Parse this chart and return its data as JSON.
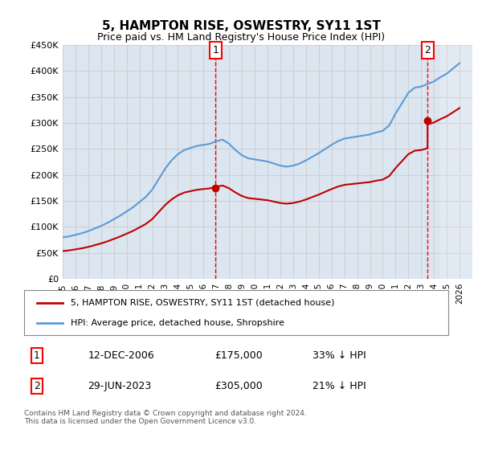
{
  "title": "5, HAMPTON RISE, OSWESTRY, SY11 1ST",
  "subtitle": "Price paid vs. HM Land Registry's House Price Index (HPI)",
  "ylim": [
    0,
    450000
  ],
  "yticks": [
    0,
    50000,
    100000,
    150000,
    200000,
    250000,
    300000,
    350000,
    400000,
    450000
  ],
  "ytick_labels": [
    "£0",
    "£50K",
    "£100K",
    "£150K",
    "£200K",
    "£250K",
    "£300K",
    "£350K",
    "£400K",
    "£450K"
  ],
  "xlim_start": 1995.0,
  "xlim_end": 2027.0,
  "sale1_date": 2006.95,
  "sale1_price": 175000,
  "sale1_label": "1",
  "sale1_text": "12-DEC-2006    £175,000    33% ↓ HPI",
  "sale2_date": 2023.5,
  "sale2_price": 305000,
  "sale2_label": "2",
  "sale2_text": "29-JUN-2023    £305,000    21% ↓ HPI",
  "hpi_color": "#5b9bd5",
  "hpi_bg": "#dce6f1",
  "price_color": "#c00000",
  "vline_color": "#ff0000",
  "grid_color": "#d0d0d0",
  "legend_line1": "5, HAMPTON RISE, OSWESTRY, SY11 1ST (detached house)",
  "legend_line2": "HPI: Average price, detached house, Shropshire",
  "footer": "Contains HM Land Registry data © Crown copyright and database right 2024.\nThis data is licensed under the Open Government Licence v3.0.",
  "hatch_start": 2024.5,
  "background_color": "#ffffff"
}
